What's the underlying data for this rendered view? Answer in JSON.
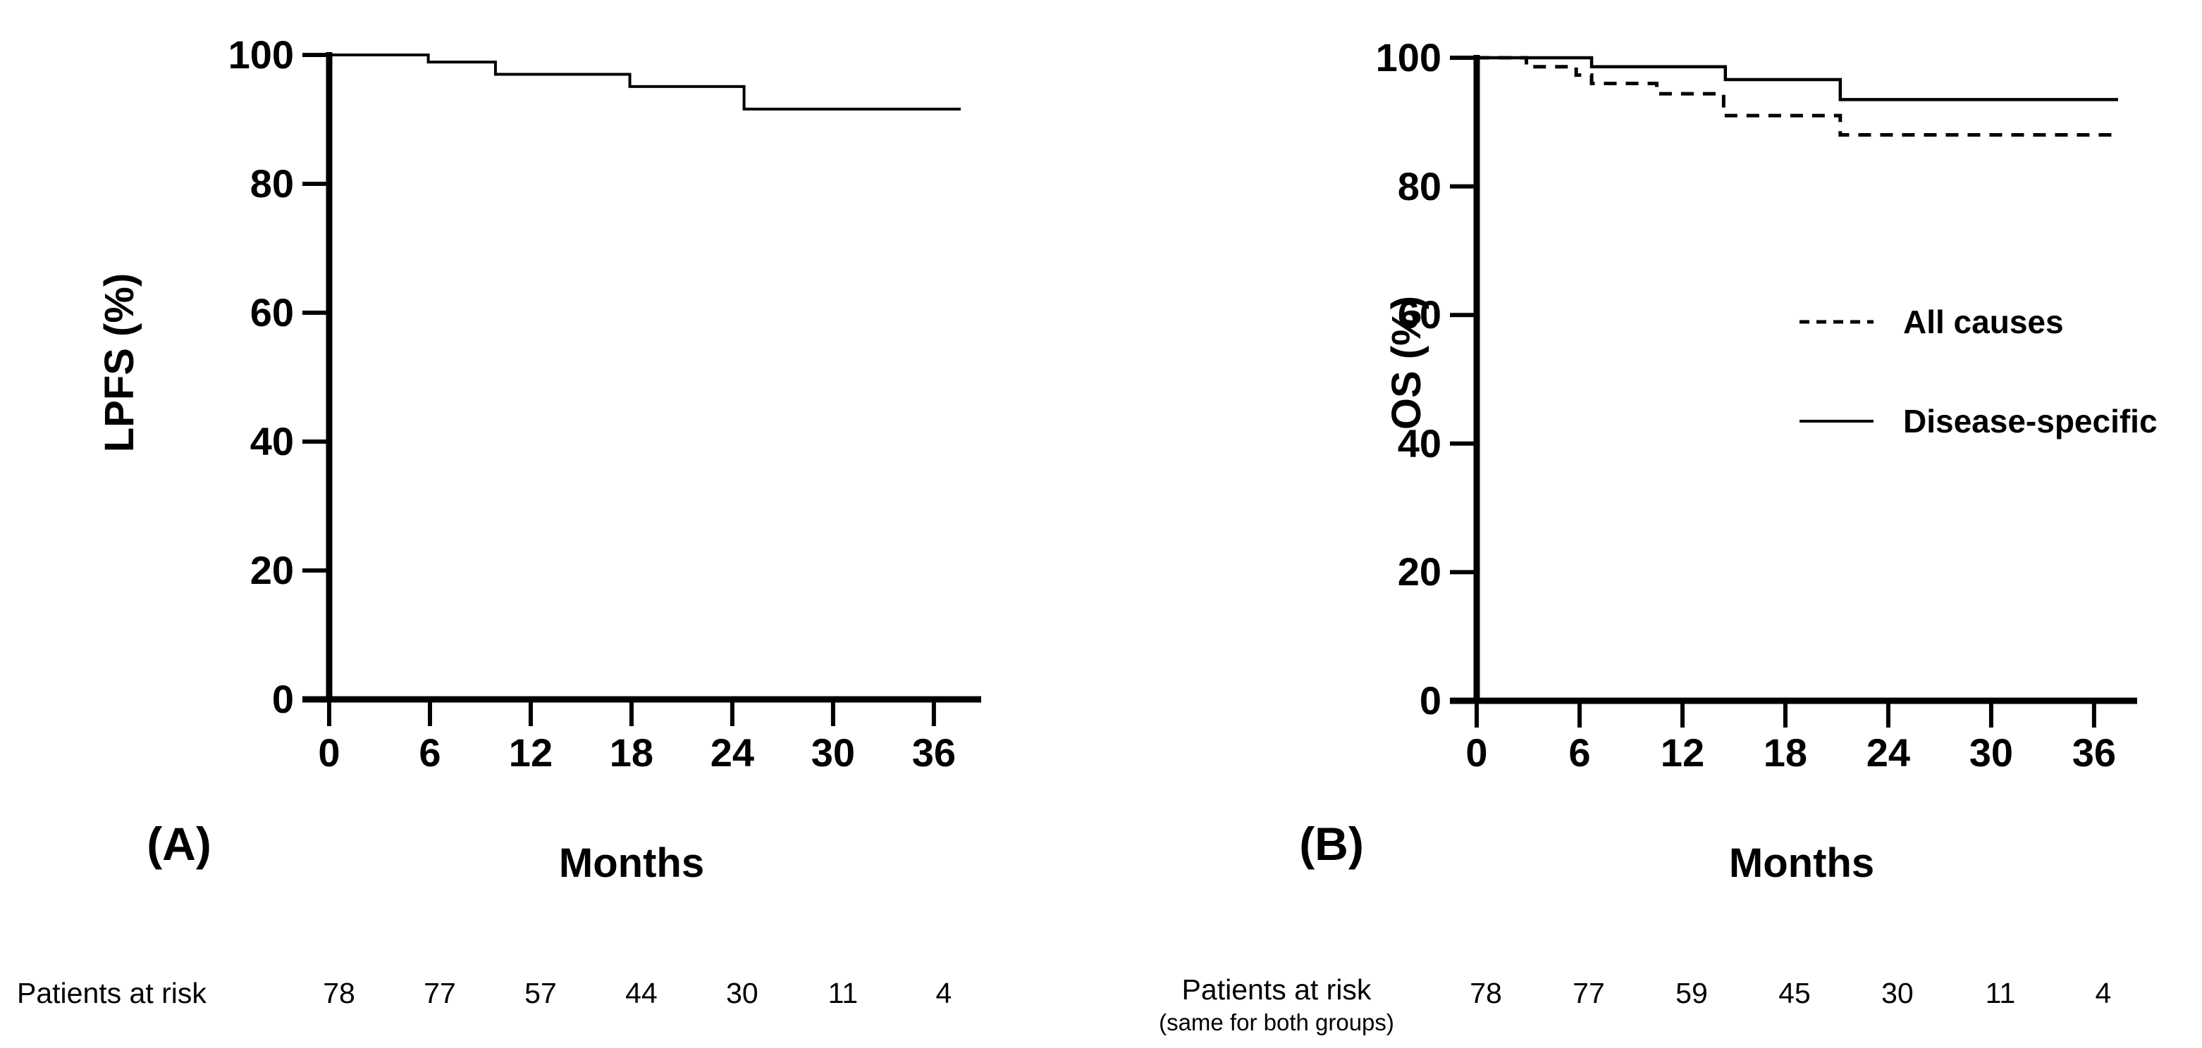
{
  "figure": {
    "background": "#ffffff",
    "ink": "#000000"
  },
  "chart_data": [
    {
      "type": "line",
      "subtype": "kaplan_meier_step",
      "panel_label": "(A)",
      "title": "",
      "xlabel": "Months",
      "ylabel": "LPFS (%)",
      "xlim": [
        0,
        38.8
      ],
      "ylim": [
        0,
        100
      ],
      "x_ticks": [
        0,
        6,
        12,
        18,
        24,
        30,
        36
      ],
      "y_ticks": [
        0,
        20,
        40,
        60,
        80,
        100
      ],
      "grid": false,
      "legend": [],
      "series": [
        {
          "name": "LPFS",
          "line_style": "solid",
          "color": "#000000",
          "steps_x_months": [
            0,
            5.9,
            9.9,
            17.9,
            24.7
          ],
          "steps_y_percent": [
            100,
            98.9,
            97.0,
            95.1,
            91.6
          ],
          "end_x_months": 37.6
        }
      ],
      "patients_at_risk": {
        "label": "Patients at risk",
        "note": "",
        "times_months": [
          0,
          6,
          12,
          18,
          24,
          30,
          36
        ],
        "counts": [
          78,
          77,
          57,
          44,
          30,
          11,
          4
        ]
      }
    },
    {
      "type": "line",
      "subtype": "kaplan_meier_step",
      "panel_label": "(B)",
      "title": "",
      "xlabel": "Months",
      "ylabel": "OS (%)",
      "xlim": [
        0,
        38.5
      ],
      "ylim": [
        0,
        100
      ],
      "x_ticks": [
        0,
        6,
        12,
        18,
        24,
        30,
        36
      ],
      "y_ticks": [
        0,
        20,
        40,
        60,
        80,
        100
      ],
      "grid": false,
      "legend": [
        {
          "label": "All causes",
          "line_style": "dashed"
        },
        {
          "label": "Disease-specific",
          "line_style": "solid"
        }
      ],
      "series": [
        {
          "name": "All causes",
          "line_style": "dashed",
          "color": "#000000",
          "steps_x_months": [
            0,
            2.9,
            5.8,
            6.7,
            10.5,
            14.4,
            21.2
          ],
          "steps_y_percent": [
            100,
            98.6,
            97.3,
            96.0,
            94.4,
            91.0,
            88.0
          ],
          "end_x_months": 37.4
        },
        {
          "name": "Disease-specific",
          "line_style": "solid",
          "color": "#000000",
          "steps_x_months": [
            0,
            6.7,
            14.5,
            21.2
          ],
          "steps_y_percent": [
            100,
            98.6,
            96.6,
            93.5
          ],
          "end_x_months": 37.4
        }
      ],
      "patients_at_risk": {
        "label": "Patients at risk",
        "note": "(same for both groups)",
        "times_months": [
          0,
          6,
          12,
          18,
          24,
          30,
          36
        ],
        "counts": [
          78,
          77,
          59,
          45,
          30,
          11,
          4
        ]
      }
    }
  ]
}
